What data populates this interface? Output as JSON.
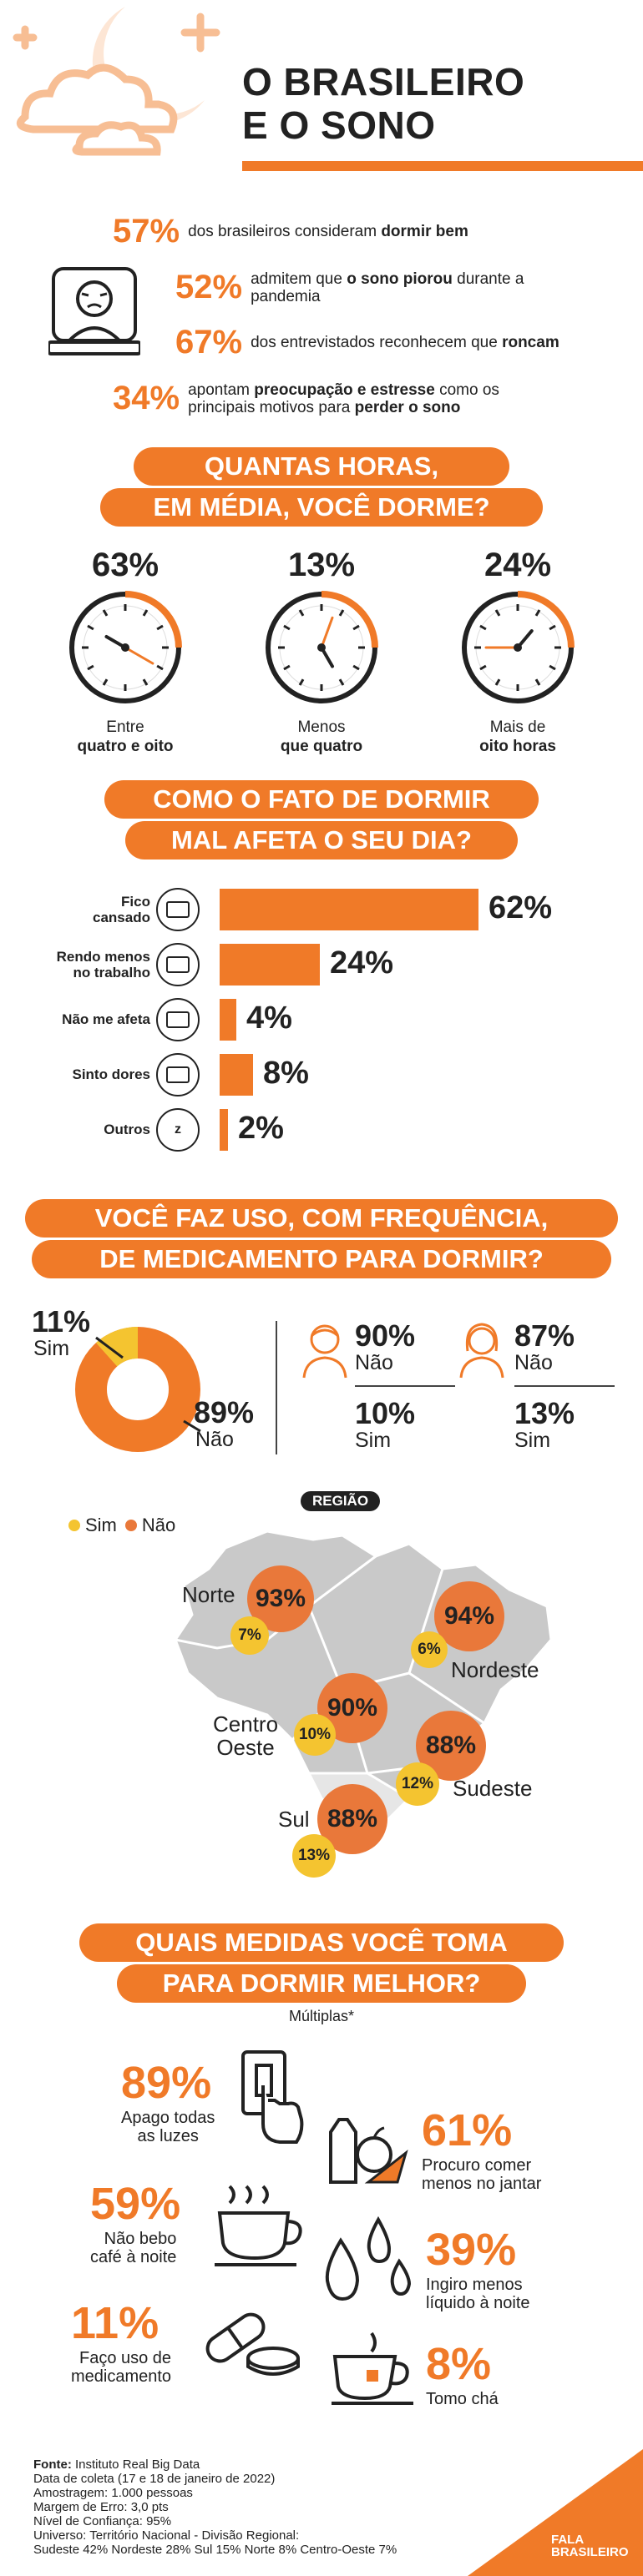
{
  "header": {
    "title_line1": "O BRASILEIRO",
    "title_line2": "E O SONO"
  },
  "stats": [
    {
      "pct": "57%",
      "text_a": "dos brasileiros consideram ",
      "text_b": "dormir bem",
      "text_c": ""
    },
    {
      "pct": "52%",
      "text_a": "admitem que ",
      "text_b": "o sono piorou",
      "text_c": " durante a pandemia"
    },
    {
      "pct": "67%",
      "text_a": "dos entrevistados reconhecem que ",
      "text_b": "roncam",
      "text_c": ""
    },
    {
      "pct": "34%",
      "text_a": "apontam ",
      "text_b": "preocupação e estresse",
      "text_c": " como os principais motivos para "
    },
    {
      "extra_b": "perder o sono"
    }
  ],
  "hours": {
    "title_line1": "QUANTAS HORAS,",
    "title_line2": "EM MÉDIA, VOCÊ DORME?",
    "items": [
      {
        "pct": "63%",
        "line1": "Entre",
        "line2": "quatro e oito"
      },
      {
        "pct": "13%",
        "line1": "Menos",
        "line2": "que quatro"
      },
      {
        "pct": "24%",
        "line1": "Mais de",
        "line2": "oito horas"
      }
    ]
  },
  "effect": {
    "title_line1": "COMO O FATO DE DORMIR",
    "title_line2": "MAL AFETA O SEU DIA?",
    "bars": [
      {
        "label1": "Fico",
        "label2": "cansado",
        "value": 62,
        "text": "62%",
        "icon": "battery-icon"
      },
      {
        "label1": "Rendo menos",
        "label2": "no trabalho",
        "value": 24,
        "text": "24%",
        "icon": "worker-icon"
      },
      {
        "label1": "Não me afeta",
        "label2": "",
        "value": 4,
        "text": "4%",
        "icon": "happy-bed-icon"
      },
      {
        "label1": "Sinto dores",
        "label2": "",
        "value": 8,
        "text": "8%",
        "icon": "headache-icon"
      },
      {
        "label1": "Outros",
        "label2": "",
        "value": 2,
        "text": "2%",
        "icon": "zzz-icon"
      }
    ]
  },
  "meds": {
    "title_line1": "VOCÊ FAZ USO, COM FREQUÊNCIA,",
    "title_line2": "DE MEDICAMENTO PARA DORMIR?",
    "yes_pct": "11%",
    "yes_lbl": "Sim",
    "no_pct": "89%",
    "no_lbl": "Não",
    "men": {
      "no_pct": "90%",
      "no_lbl": "Não",
      "yes_pct": "10%",
      "yes_lbl": "Sim"
    },
    "women": {
      "no_pct": "87%",
      "no_lbl": "Não",
      "yes_pct": "13%",
      "yes_lbl": "Sim"
    }
  },
  "region": {
    "title": "REGIÃO",
    "legend_yes": "Sim",
    "legend_no": "Não",
    "colors": {
      "yes": "#F4C430",
      "no": "#E9783A"
    },
    "items": [
      {
        "name1": "Norte",
        "name2": "",
        "no": "93%",
        "yes": "7%"
      },
      {
        "name1": "Nordeste",
        "name2": "",
        "no": "94%",
        "yes": "6%"
      },
      {
        "name1": "Centro",
        "name2": "Oeste",
        "no": "90%",
        "yes": "10%"
      },
      {
        "name1": "Sudeste",
        "name2": "",
        "no": "88%",
        "yes": "12%"
      },
      {
        "name1": "Sul",
        "name2": "",
        "no": "88%",
        "yes": "13%"
      }
    ]
  },
  "measures": {
    "title_line1": "QUAIS MEDIDAS VOCÊ TOMA",
    "title_line2": "PARA DORMIR MELHOR?",
    "subtitle": "Múltiplas*",
    "items": [
      {
        "pct": "89%",
        "line1": "Apago todas",
        "line2": "as luzes"
      },
      {
        "pct": "61%",
        "line1": "Procuro comer",
        "line2": "menos no jantar"
      },
      {
        "pct": "59%",
        "line1": "Não bebo",
        "line2": "café à noite"
      },
      {
        "pct": "39%",
        "line1": "Ingiro menos",
        "line2": "líquido à noite"
      },
      {
        "pct": "11%",
        "line1": "Faço uso de",
        "line2": "medicamento"
      },
      {
        "pct": "8%",
        "line1": "Tomo chá",
        "line2": ""
      }
    ]
  },
  "footer": {
    "source_label": "Fonte:",
    "source": " Instituto Real Big Data",
    "lines": [
      "Data de coleta (17 e 18 de janeiro de 2022)",
      "Amostragem: 1.000 pessoas",
      "Margem de Erro: 3,0 pts",
      "Nível de Confiança: 95%",
      "Universo: Território Nacional - Divisão Regional:",
      "Sudeste 42% Nordeste 28% Sul 15% Norte 8% Centro-Oeste 7%"
    ],
    "brand1": "FALA",
    "brand2": "BRASILEIRO"
  },
  "chart_data": {
    "type": "bar",
    "categories": [
      "Fico cansado",
      "Rendo menos no trabalho",
      "Não me afeta",
      "Sinto dores",
      "Outros"
    ],
    "values": [
      62,
      24,
      4,
      8,
      2
    ]
  }
}
